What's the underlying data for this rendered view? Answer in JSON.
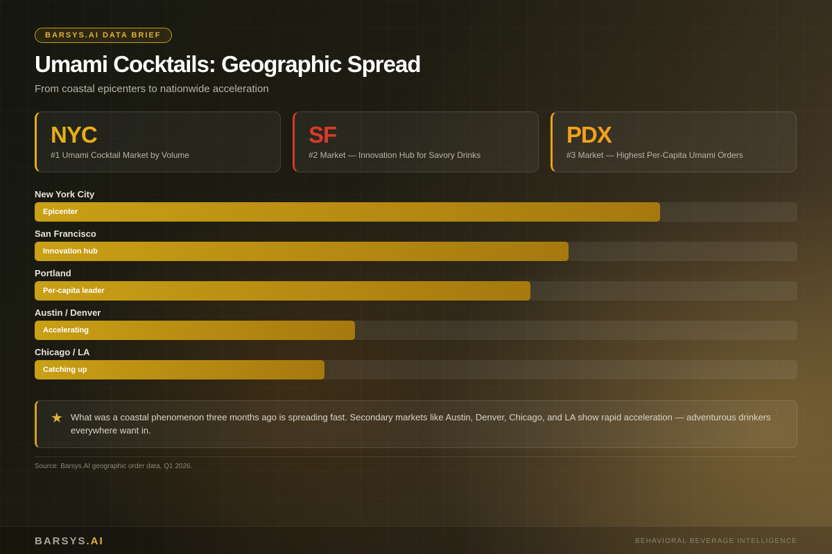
{
  "badge": "BARSYS.AI DATA BRIEF",
  "title": "Umami Cocktails: Geographic Spread",
  "subtitle": "From coastal epicenters to nationwide acceleration",
  "cards": [
    {
      "code": "NYC",
      "desc": "#1 Umami Cocktail Market by Volume",
      "color": "#e6ae17"
    },
    {
      "code": "SF",
      "desc": "#2 Market — Innovation Hub for Savory Drinks",
      "color": "#d63a2a"
    },
    {
      "code": "PDX",
      "desc": "#3 Market — Highest Per-Capita Umami Orders",
      "color": "#f0a21a"
    }
  ],
  "chart_data": {
    "type": "bar",
    "orientation": "horizontal",
    "categories": [
      "New York City",
      "San Francisco",
      "Portland",
      "Austin / Denver",
      "Chicago / LA"
    ],
    "bar_labels": [
      "Epicenter",
      "Innovation hub",
      "Per-capita leader",
      "Accelerating",
      "Catching up"
    ],
    "values": [
      82,
      70,
      65,
      42,
      38
    ],
    "xlim": [
      0,
      100
    ],
    "grid": false,
    "legend": "none"
  },
  "callout": {
    "icon": "star-icon",
    "text": "What was a coastal phenomenon three months ago is spreading fast. Secondary markets like Austin, Denver, Chicago, and LA show rapid acceleration — adventurous drinkers everywhere want in."
  },
  "source": "Source: Barsys.AI geographic order data, Q1 2026.",
  "footer": {
    "logo_main": "BARSYS",
    "logo_accent": ".AI",
    "tagline": "BEHAVIORAL BEVERAGE INTELLIGENCE"
  }
}
